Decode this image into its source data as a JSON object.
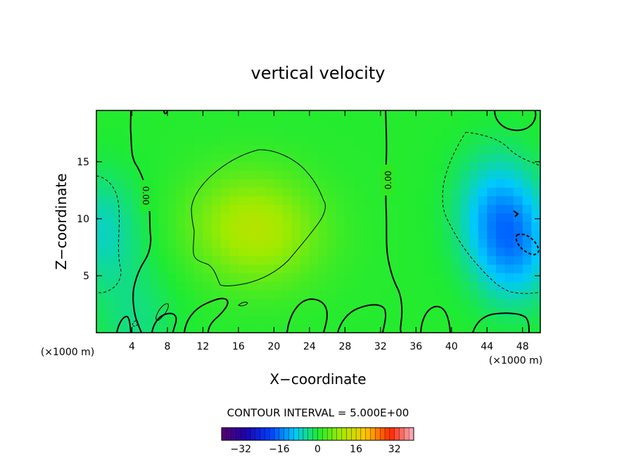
{
  "chart_data": {
    "type": "heatmap",
    "title": "vertical velocity",
    "xlabel": "X−coordinate",
    "ylabel": "Z−coordinate",
    "x_unit": "(×1000 m)",
    "x_unit_right": "(×1000 m)",
    "xlim": [
      0,
      50
    ],
    "ylim": [
      0,
      19.5
    ],
    "x_ticks": [
      4,
      8,
      12,
      16,
      20,
      24,
      28,
      32,
      36,
      40,
      44,
      48
    ],
    "y_ticks": [
      5,
      10,
      15
    ],
    "contour_interval_text": "CONTOUR INTERVAL = 5.000E+00",
    "contour_labels": [
      "0.00",
      "0.00"
    ],
    "colorbar": {
      "range": [
        -40,
        40
      ],
      "ticks": [
        -32,
        -16,
        0,
        16,
        32
      ],
      "tick_labels": [
        "−32",
        "−16",
        "0",
        "16",
        "32"
      ]
    },
    "field_features": [
      {
        "kind": "updraft",
        "x": 17,
        "z": 10,
        "value": 7
      },
      {
        "kind": "updraft",
        "x": 19,
        "z": 8,
        "value": 5
      },
      {
        "kind": "downdraft",
        "x": 45,
        "z": 11,
        "value": -9
      },
      {
        "kind": "downdraft",
        "x": 47,
        "z": 7.5,
        "value": -12
      },
      {
        "kind": "downdraft",
        "x": 0.5,
        "z": 9,
        "value": -7
      },
      {
        "kind": "downdraft",
        "x": 4.5,
        "z": 1,
        "value": -4
      }
    ]
  }
}
